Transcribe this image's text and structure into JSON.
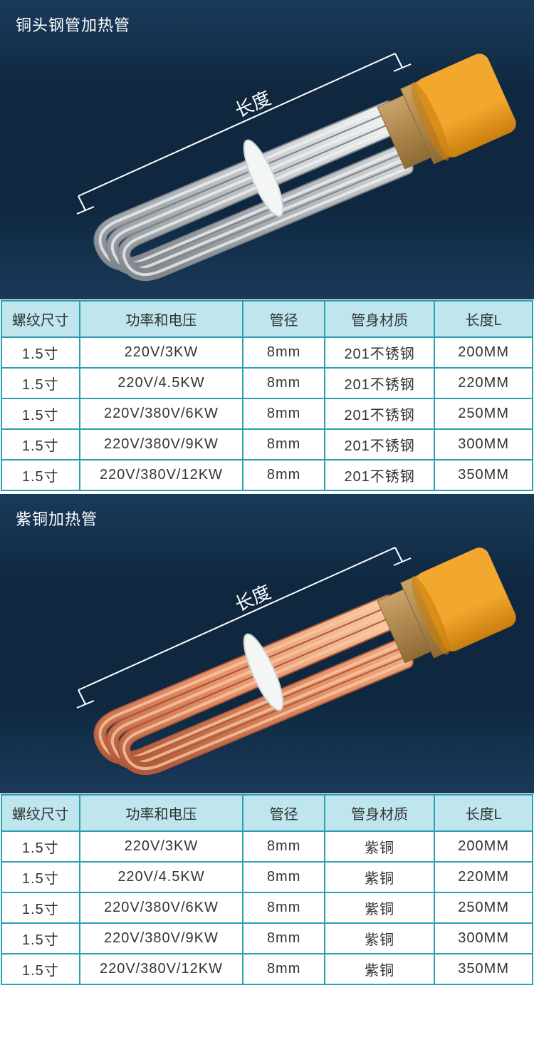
{
  "colors": {
    "panel_bg_top": "#1a3a5a",
    "panel_bg_mid": "#0f2840",
    "table_header_bg": "#bfe6ed",
    "table_border": "#2d9fb3",
    "annotation_line": "#ffffff",
    "cap_orange": "#f2a72e",
    "cap_orange_dark": "#c97f0e",
    "brass": "#c9a36a",
    "brass_dark": "#8f6a32",
    "steel_light": "#eef0f1",
    "steel_mid": "#b8bcc0",
    "steel_dark": "#7f868c",
    "copper_light": "#f8c8a0",
    "copper_mid": "#e6906a",
    "copper_dark": "#b05a3a",
    "washer": "#f4f6f5"
  },
  "dimension_label": "长度",
  "sections": [
    {
      "id": "steel",
      "title": "铜头钢管加热管",
      "tube_style": "steel",
      "table": {
        "columns": [
          "螺纹尺寸",
          "功率和电压",
          "管径",
          "管身材质",
          "长度L"
        ],
        "rows": [
          [
            "1.5寸",
            "220V/3KW",
            "8mm",
            "201不锈钢",
            "200MM"
          ],
          [
            "1.5寸",
            "220V/4.5KW",
            "8mm",
            "201不锈钢",
            "220MM"
          ],
          [
            "1.5寸",
            "220V/380V/6KW",
            "8mm",
            "201不锈钢",
            "250MM"
          ],
          [
            "1.5寸",
            "220V/380V/9KW",
            "8mm",
            "201不锈钢",
            "300MM"
          ],
          [
            "1.5寸",
            "220V/380V/12KW",
            "8mm",
            "201不锈钢",
            "350MM"
          ]
        ]
      }
    },
    {
      "id": "copper",
      "title": "紫铜加热管",
      "tube_style": "copper",
      "table": {
        "columns": [
          "螺纹尺寸",
          "功率和电压",
          "管径",
          "管身材质",
          "长度L"
        ],
        "rows": [
          [
            "1.5寸",
            "220V/3KW",
            "8mm",
            "紫铜",
            "200MM"
          ],
          [
            "1.5寸",
            "220V/4.5KW",
            "8mm",
            "紫铜",
            "220MM"
          ],
          [
            "1.5寸",
            "220V/380V/6KW",
            "8mm",
            "紫铜",
            "250MM"
          ],
          [
            "1.5寸",
            "220V/380V/9KW",
            "8mm",
            "紫铜",
            "300MM"
          ],
          [
            "1.5寸",
            "220V/380V/12KW",
            "8mm",
            "紫铜",
            "350MM"
          ]
        ]
      }
    }
  ]
}
